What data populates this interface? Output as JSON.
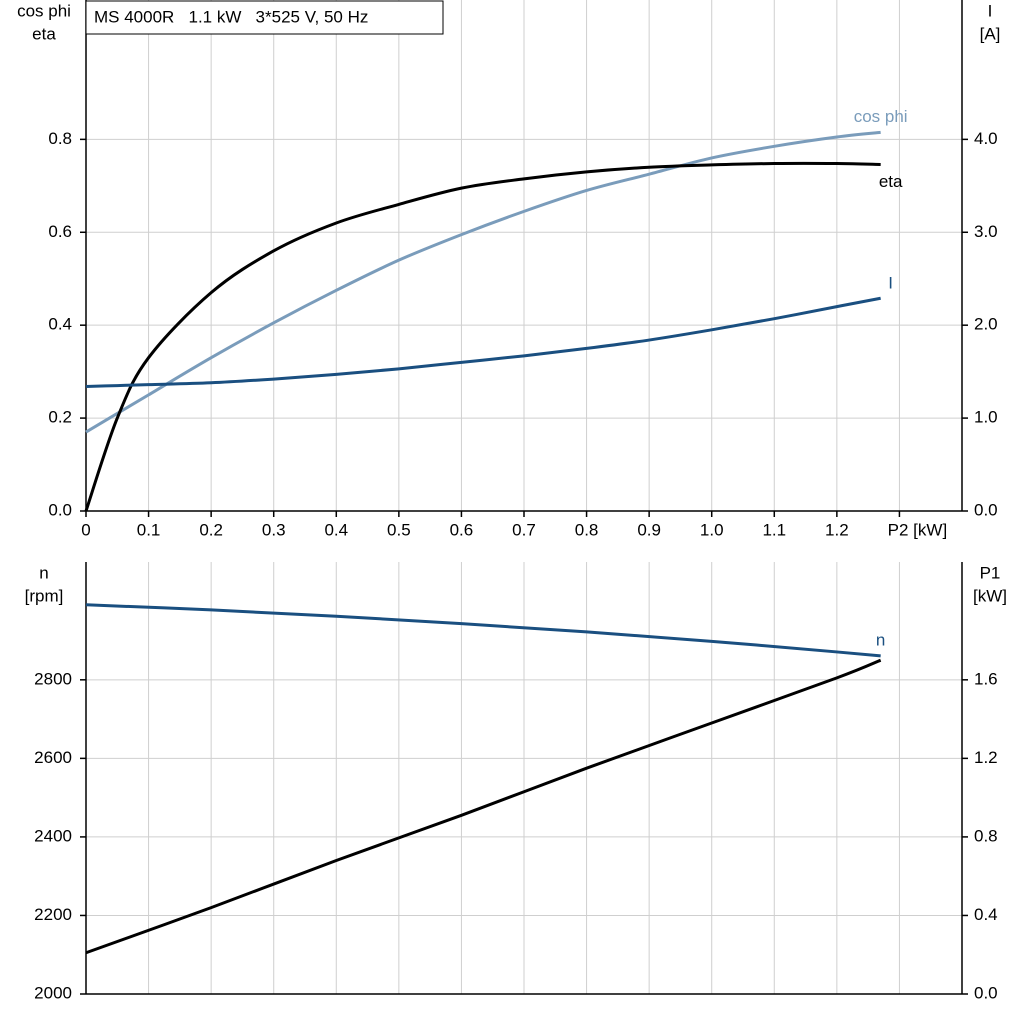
{
  "chart_data": [
    {
      "type": "line",
      "title": "MS 4000R   1.1 kW   3*525 V, 50 Hz",
      "ylabel": [
        "cos phi",
        "eta"
      ],
      "y2label": [
        "I",
        "[A]"
      ],
      "x": [
        0,
        0.05,
        0.1,
        0.2,
        0.3,
        0.4,
        0.5,
        0.6,
        0.7,
        0.8,
        0.9,
        1.0,
        1.1,
        1.2,
        1.27
      ],
      "series": [
        {
          "name": "cos phi",
          "color": "#7a9cbb",
          "values": [
            0.17,
            0.21,
            0.25,
            0.33,
            0.405,
            0.475,
            0.54,
            0.595,
            0.645,
            0.69,
            0.725,
            0.76,
            0.785,
            0.805,
            0.815
          ]
        },
        {
          "name": "eta",
          "color": "#000000",
          "values": [
            0,
            0.2,
            0.33,
            0.47,
            0.56,
            0.62,
            0.66,
            0.695,
            0.715,
            0.73,
            0.74,
            0.745,
            0.748,
            0.748,
            0.746
          ]
        },
        {
          "name": "I",
          "color": "#1a4f80",
          "axis": "y2",
          "values": [
            1.34,
            1.35,
            1.36,
            1.38,
            1.42,
            1.47,
            1.53,
            1.6,
            1.67,
            1.75,
            1.84,
            1.95,
            2.07,
            2.2,
            2.29
          ]
        }
      ],
      "xlim": [
        0,
        1.4
      ],
      "xticks": [
        0,
        {
          "value": 0.1,
          "label": "0.1"
        },
        {
          "value": 0.2,
          "label": "0.2"
        },
        {
          "value": 0.3,
          "label": "0.3"
        },
        {
          "value": 0.4,
          "label": "0.4"
        },
        {
          "value": 0.5,
          "label": "0.5"
        },
        {
          "value": 0.6,
          "label": "0.6"
        },
        {
          "value": 0.7,
          "label": "0.7"
        },
        {
          "value": 0.8,
          "label": "0.8"
        },
        {
          "value": 0.9,
          "label": "0.9"
        },
        {
          "value": 1.0,
          "label": "1.0"
        },
        {
          "value": 1.1,
          "label": "1.1"
        },
        {
          "value": 1.2,
          "label": "1.2"
        },
        {
          "value": 1.3,
          "label": "P2 [kW]"
        }
      ],
      "ylim": [
        0,
        1.1
      ],
      "yticks": [
        {
          "value": 0,
          "label": "0.0"
        },
        {
          "value": 0.2,
          "label": "0.2"
        },
        {
          "value": 0.4,
          "label": "0.4"
        },
        {
          "value": 0.6,
          "label": "0.6"
        },
        {
          "value": 0.8,
          "label": "0.8"
        }
      ],
      "y2lim": [
        0,
        5.5
      ],
      "y2ticks": [
        {
          "value": 0,
          "label": "0.0"
        },
        {
          "value": 1,
          "label": "1.0"
        },
        {
          "value": 2,
          "label": "2.0"
        },
        {
          "value": 3,
          "label": "3.0"
        },
        {
          "value": 4,
          "label": "4.0"
        }
      ],
      "grid": true
    },
    {
      "type": "line",
      "ylabel": [
        "n",
        "[rpm]"
      ],
      "y2label": [
        "P1",
        "[kW]"
      ],
      "x": [
        0,
        0.2,
        0.4,
        0.6,
        0.8,
        1.0,
        1.2,
        1.27
      ],
      "series": [
        {
          "name": "n",
          "color": "#1a4f80",
          "values": [
            2991,
            2978,
            2962,
            2943,
            2922,
            2898,
            2871,
            2861
          ]
        },
        {
          "color": "#000000",
          "axis": "y2",
          "values": [
            0.21,
            0.44,
            0.68,
            0.91,
            1.15,
            1.38,
            1.61,
            1.7
          ]
        }
      ],
      "xlim": [
        0,
        1.4
      ],
      "ylim": [
        2000,
        3100
      ],
      "yticks": [
        2000,
        2200,
        2400,
        2600,
        2800
      ],
      "y2lim": [
        0,
        2.2
      ],
      "y2ticks": [
        {
          "value": 0,
          "label": "0.0"
        },
        {
          "value": 0.4,
          "label": "0.4"
        },
        {
          "value": 0.8,
          "label": "0.8"
        },
        {
          "value": 1.2,
          "label": "1.2"
        },
        {
          "value": 1.6,
          "label": "1.6"
        }
      ],
      "grid": true
    }
  ]
}
